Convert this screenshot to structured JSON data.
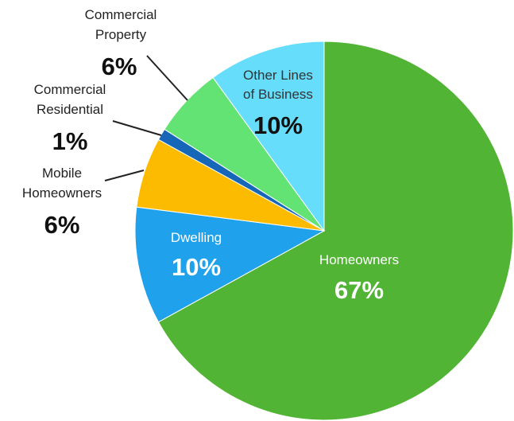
{
  "chart_data": {
    "type": "pie",
    "slices": [
      {
        "label_lines": [
          "Homeowners"
        ],
        "value": 67,
        "value_label": "67%",
        "color": "#52b435",
        "label_color": "#ffffff"
      },
      {
        "label_lines": [
          "Dwelling"
        ],
        "value": 10,
        "value_label": "10%",
        "color": "#1fa2eb",
        "label_color": "#ffffff"
      },
      {
        "label_lines": [
          "Mobile",
          "Homeowners"
        ],
        "value": 6,
        "value_label": "6%",
        "color": "#fdbb00",
        "label_color": "#222222"
      },
      {
        "label_lines": [
          "Commercial",
          "Residential"
        ],
        "value": 1,
        "value_label": "1%",
        "color": "#1667b8",
        "label_color": "#222222"
      },
      {
        "label_lines": [
          "Commercial",
          "Property"
        ],
        "value": 6,
        "value_label": "6%",
        "color": "#62e374",
        "label_color": "#222222"
      },
      {
        "label_lines": [
          "Other Lines",
          "of Business"
        ],
        "value": 10,
        "value_label": "10%",
        "color": "#66ddfa",
        "label_color": "#333333"
      }
    ]
  }
}
